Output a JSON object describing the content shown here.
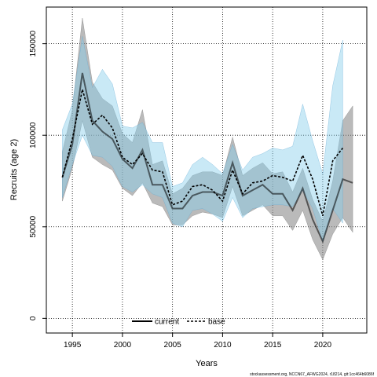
{
  "chart_data": {
    "type": "line",
    "title": "",
    "xlabel": "Years",
    "ylabel": "Recruits (age 2)",
    "xlim": [
      1992.4,
      2024.4
    ],
    "ylim": [
      -8000,
      170000
    ],
    "xticks": [
      "1995",
      "2000",
      "2005",
      "2010",
      "2015",
      "2020"
    ],
    "yticks": [
      "0",
      "50000",
      "100000",
      "150000"
    ],
    "grid": true,
    "legend_position": "bottom-center",
    "colors": {
      "current_fill": "#8c8c8c",
      "current_line": "#000000",
      "base_fill": "#87ceeb",
      "base_line": "#000000"
    },
    "footer": "stockassessment.org, NCCN67_AFWG2024, r18214, git:1cc464b6086f",
    "series": [
      {
        "name": "current",
        "style": "solid",
        "x": [
          1994,
          1995,
          1996,
          1997,
          1998,
          1999,
          2000,
          2001,
          2002,
          2003,
          2004,
          2005,
          2006,
          2007,
          2008,
          2009,
          2010,
          2011,
          2012,
          2013,
          2014,
          2015,
          2016,
          2017,
          2018,
          2019,
          2020,
          2021,
          2022,
          2023
        ],
        "values": [
          77000,
          95000,
          134000,
          108000,
          102000,
          98000,
          87000,
          82000,
          92000,
          73000,
          73000,
          60000,
          60000,
          67000,
          69000,
          69000,
          67000,
          85000,
          67000,
          70000,
          73000,
          68000,
          68000,
          59000,
          71000,
          54000,
          42000,
          59000,
          76000,
          74000
        ],
        "lower": [
          64000,
          82000,
          108000,
          88000,
          84000,
          81000,
          71000,
          67000,
          74000,
          63000,
          61000,
          51000,
          51000,
          56000,
          58000,
          57000,
          55000,
          72000,
          56000,
          59000,
          62000,
          56000,
          56000,
          48000,
          59000,
          43000,
          32000,
          46000,
          55000,
          47000
        ],
        "upper": [
          91000,
          114000,
          164000,
          129000,
          120000,
          116000,
          101000,
          96000,
          114000,
          84000,
          86000,
          68000,
          71000,
          78000,
          80000,
          80000,
          78000,
          99000,
          78000,
          82000,
          85000,
          79000,
          80000,
          69000,
          82000,
          65000,
          53000,
          75000,
          108000,
          116000
        ]
      },
      {
        "name": "base",
        "style": "dashed",
        "x": [
          1994,
          1995,
          1996,
          1997,
          1998,
          1999,
          2000,
          2001,
          2002,
          2003,
          2004,
          2005,
          2006,
          2007,
          2008,
          2009,
          2010,
          2011,
          2012,
          2013,
          2014,
          2015,
          2016,
          2017,
          2018,
          2019,
          2020,
          2021,
          2022
        ],
        "values": [
          77000,
          98000,
          125000,
          106000,
          111000,
          104000,
          88000,
          84000,
          90000,
          81000,
          80000,
          62000,
          64000,
          72000,
          73000,
          70000,
          64000,
          81000,
          68000,
          74000,
          75000,
          78000,
          77000,
          75000,
          89000,
          76000,
          56000,
          86000,
          93000
        ],
        "lower": [
          66000,
          84000,
          100000,
          89000,
          88000,
          83000,
          72000,
          69000,
          73000,
          68000,
          66000,
          52000,
          50000,
          59000,
          60000,
          57000,
          53000,
          66000,
          55000,
          60000,
          61000,
          62000,
          62000,
          61000,
          70000,
          60000,
          42000,
          60000,
          52000
        ],
        "upper": [
          103000,
          117000,
          154000,
          126000,
          136000,
          128000,
          105000,
          104000,
          107000,
          96000,
          96000,
          72000,
          74000,
          84000,
          88000,
          84000,
          79000,
          95000,
          81000,
          88000,
          90000,
          93000,
          92000,
          94000,
          117000,
          97000,
          79000,
          127000,
          152000
        ]
      }
    ]
  }
}
